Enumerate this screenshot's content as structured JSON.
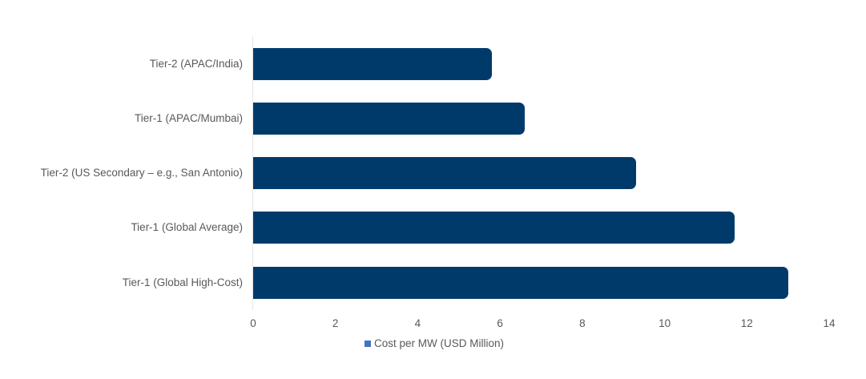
{
  "chart_data": {
    "type": "bar",
    "orientation": "horizontal",
    "title": "",
    "xlabel": "",
    "ylabel": "",
    "categories": [
      "Tier-2 (APAC/India)",
      "Tier-1 (APAC/Mumbai)",
      "Tier-2 (US Secondary – e.g., San Antonio)",
      "Tier-1 (Global Average)",
      "Tier-1 (Global High-Cost)"
    ],
    "series": [
      {
        "name": "Cost per MW (USD Million)",
        "values": [
          5.8,
          6.6,
          9.3,
          11.7,
          13.0
        ],
        "color": "#003a6b"
      }
    ],
    "xlim": [
      0,
      14
    ],
    "x_ticks": [
      "0",
      "2",
      "4",
      "6",
      "8",
      "10",
      "12",
      "14"
    ],
    "grid": false,
    "legend": {
      "position": "bottom",
      "entries": [
        {
          "label": "Cost per MW (USD Million)",
          "swatch_color": "#4472c4"
        }
      ]
    }
  }
}
